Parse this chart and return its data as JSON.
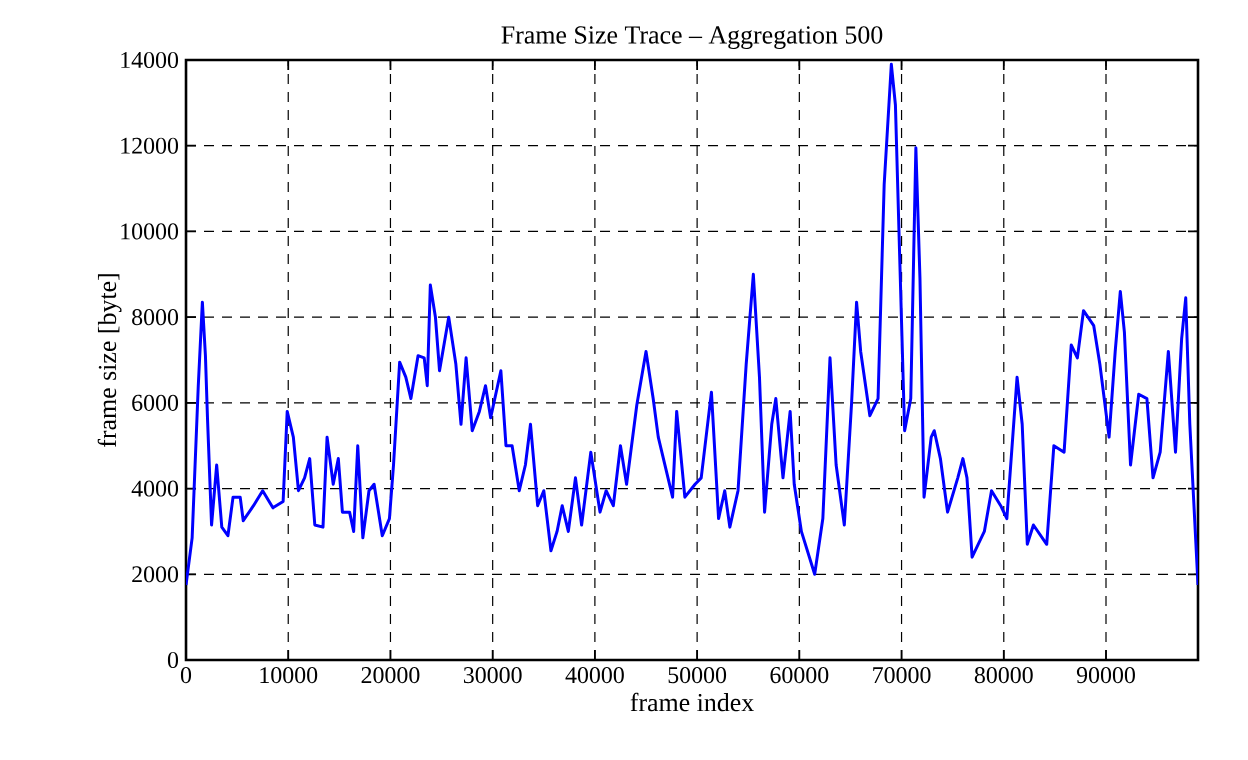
{
  "chart_data": {
    "type": "line",
    "title": "Frame Size Trace – Aggregation 500",
    "xlabel": "frame index",
    "ylabel": "frame size [byte]",
    "xlim": [
      0,
      99000
    ],
    "ylim": [
      0,
      14000
    ],
    "xticks": [
      0,
      10000,
      20000,
      30000,
      40000,
      50000,
      60000,
      70000,
      80000,
      90000
    ],
    "yticks": [
      0,
      2000,
      4000,
      6000,
      8000,
      10000,
      12000,
      14000
    ],
    "grid": true,
    "marker": "none",
    "line_style": "solid",
    "series": [
      {
        "color": "#0000ff",
        "x": [
          0,
          600,
          1200,
          1600,
          1900,
          2100,
          2500,
          3000,
          3500,
          4100,
          4600,
          5300,
          5600,
          6600,
          7500,
          8500,
          9500,
          9900,
          10500,
          11000,
          11600,
          12100,
          12600,
          13400,
          13800,
          14400,
          14900,
          15300,
          16000,
          16400,
          16800,
          17300,
          17900,
          18400,
          19200,
          19900,
          20300,
          20900,
          21500,
          22000,
          22700,
          23300,
          23600,
          23900,
          24400,
          24800,
          25700,
          26400,
          26900,
          27400,
          28000,
          28700,
          29300,
          29800,
          30800,
          31300,
          31900,
          32600,
          33200,
          33700,
          34400,
          35000,
          35700,
          36300,
          36800,
          37400,
          38100,
          38700,
          39600,
          40500,
          41100,
          41800,
          42500,
          43100,
          44100,
          45000,
          45700,
          46200,
          47000,
          47600,
          48000,
          48800,
          49800,
          50400,
          51400,
          52100,
          52700,
          53200,
          54000,
          54800,
          55500,
          56100,
          56600,
          57300,
          57700,
          58400,
          59100,
          59500,
          60200,
          61500,
          62300,
          63000,
          63600,
          64400,
          65100,
          65600,
          66000,
          66900,
          67700,
          68300,
          69000,
          69400,
          69800,
          70300,
          70900,
          71400,
          71800,
          72200,
          72900,
          73200,
          73800,
          74500,
          75500,
          76000,
          76400,
          76900,
          78100,
          78800,
          79700,
          80300,
          81300,
          81800,
          82300,
          82900,
          84200,
          84900,
          85900,
          86600,
          87200,
          87800,
          88800,
          89400,
          90300,
          90900,
          91400,
          91800,
          92400,
          93200,
          94000,
          94600,
          95300,
          96100,
          96800,
          97400,
          97800,
          98200,
          99000
        ],
        "values": [
          1750,
          2850,
          6400,
          8350,
          7100,
          5650,
          3150,
          4550,
          3100,
          2900,
          3800,
          3800,
          3250,
          3600,
          3950,
          3550,
          3700,
          5800,
          5200,
          3950,
          4250,
          4700,
          3150,
          3100,
          5200,
          4100,
          4700,
          3450,
          3450,
          3000,
          5000,
          2850,
          3950,
          4100,
          2900,
          3300,
          4550,
          6950,
          6600,
          6100,
          7100,
          7050,
          6400,
          8750,
          8000,
          6750,
          8000,
          6900,
          5500,
          7050,
          5350,
          5800,
          6400,
          5650,
          6750,
          5000,
          5000,
          3950,
          4550,
          5500,
          3600,
          3950,
          2550,
          3000,
          3600,
          3000,
          4250,
          3150,
          4850,
          3450,
          3950,
          3600,
          5000,
          4100,
          5950,
          7200,
          6100,
          5200,
          4400,
          3800,
          5800,
          3800,
          4100,
          4250,
          6250,
          3300,
          3950,
          3100,
          3950,
          6900,
          9000,
          6600,
          3450,
          5500,
          6100,
          4250,
          5800,
          4100,
          3000,
          2000,
          3300,
          7050,
          4550,
          3150,
          5950,
          8350,
          7200,
          5700,
          6100,
          11100,
          13900,
          12950,
          9550,
          5350,
          6100,
          11950,
          8900,
          3800,
          5200,
          5350,
          4700,
          3450,
          4250,
          4700,
          4250,
          2400,
          3000,
          3950,
          3600,
          3300,
          6600,
          5500,
          2700,
          3150,
          2700,
          5000,
          4850,
          7350,
          7050,
          8150,
          7800,
          6900,
          5200,
          7200,
          8600,
          7650,
          4550,
          6200,
          6100,
          4250,
          4850,
          7200,
          4850,
          7500,
          8450,
          5500,
          1750
        ]
      }
    ]
  }
}
